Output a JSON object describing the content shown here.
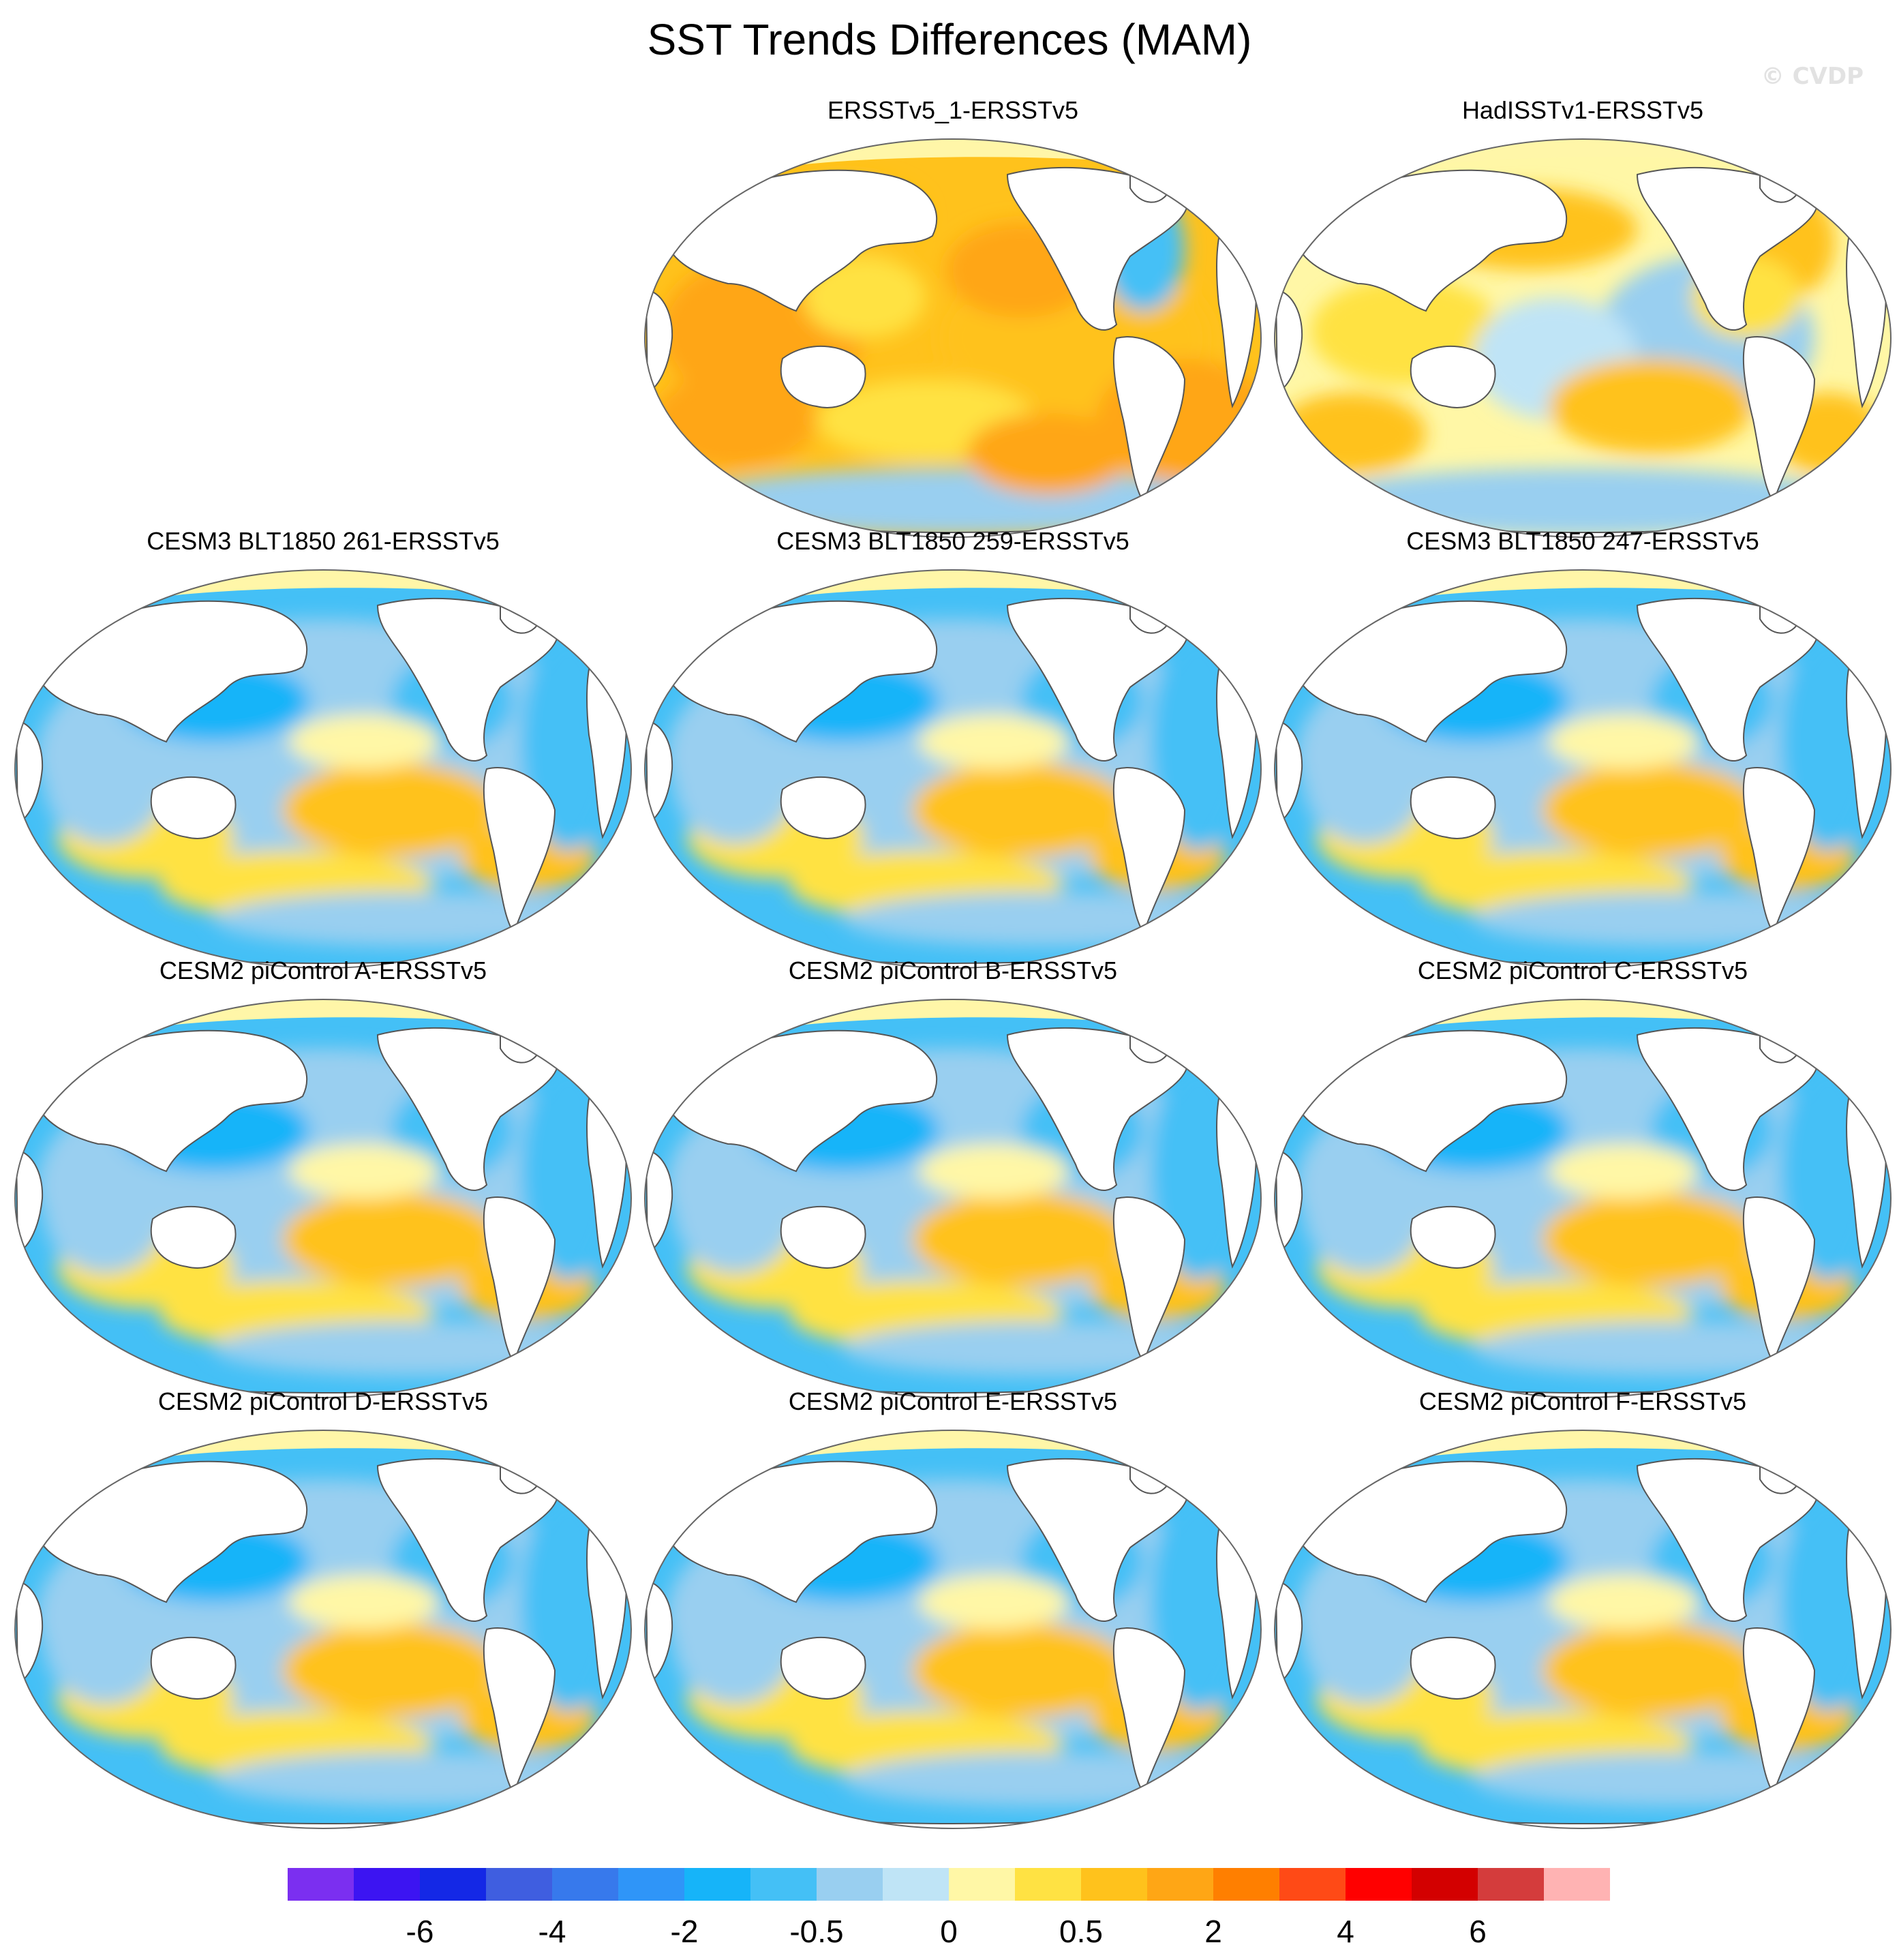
{
  "title": "SST Trends Differences (MAM)",
  "watermark": "© CVDP",
  "palette": {
    "land": "#ffffff",
    "coast": "#555555",
    "sea_ice": "#fff6a8",
    "outline": "#666666"
  },
  "panels": [
    {
      "title": "ERSSTv5_1-ERSSTv5",
      "row": 0,
      "col": 1,
      "pattern": "warm"
    },
    {
      "title": "HadISSTv1-ERSSTv5",
      "row": 0,
      "col": 2,
      "pattern": "mixed"
    },
    {
      "title": "CESM3 BLT1850 261-ERSSTv5",
      "row": 1,
      "col": 0,
      "pattern": "cool"
    },
    {
      "title": "CESM3 BLT1850 259-ERSSTv5",
      "row": 1,
      "col": 1,
      "pattern": "cool"
    },
    {
      "title": "CESM3 BLT1850 247-ERSSTv5",
      "row": 1,
      "col": 2,
      "pattern": "cool"
    },
    {
      "title": "CESM2 piControl A-ERSSTv5",
      "row": 2,
      "col": 0,
      "pattern": "cool"
    },
    {
      "title": "CESM2 piControl B-ERSSTv5",
      "row": 2,
      "col": 1,
      "pattern": "cool"
    },
    {
      "title": "CESM2 piControl C-ERSSTv5",
      "row": 2,
      "col": 2,
      "pattern": "cool"
    },
    {
      "title": "CESM2 piControl D-ERSSTv5",
      "row": 3,
      "col": 0,
      "pattern": "cool"
    },
    {
      "title": "CESM2 piControl E-ERSSTv5",
      "row": 3,
      "col": 1,
      "pattern": "cool"
    },
    {
      "title": "CESM2 piControl F-ERSSTv5",
      "row": 3,
      "col": 2,
      "pattern": "cool"
    }
  ],
  "colorbar": {
    "colors": [
      "#7b2ff0",
      "#3c14f2",
      "#1428e6",
      "#3f5ee0",
      "#3779ec",
      "#2f95f8",
      "#16b4f9",
      "#44c0f6",
      "#99cff0",
      "#bfe4f6",
      "#fff7a6",
      "#ffe243",
      "#ffc21c",
      "#ffa615",
      "#ff7f00",
      "#ff4a16",
      "#ff0000",
      "#d30000",
      "#d43c3c",
      "#ffb3b3"
    ],
    "labels": [
      "-6",
      "-4",
      "-2",
      "-0.5",
      "0",
      "0.5",
      "2",
      "4",
      "6"
    ],
    "label_boundaries": [
      2,
      4,
      6,
      8,
      10,
      12,
      14,
      16,
      18
    ]
  }
}
